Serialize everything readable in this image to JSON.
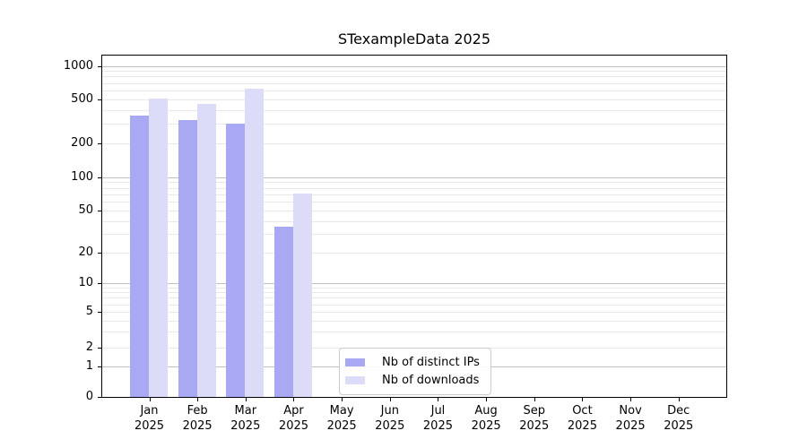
{
  "chart_data": {
    "type": "bar",
    "title": "STexampleData 2025",
    "categories": [
      "Jan 2025",
      "Feb 2025",
      "Mar 2025",
      "Apr 2025",
      "May 2025",
      "Jun 2025",
      "Jul 2025",
      "Aug 2025",
      "Sep 2025",
      "Oct 2025",
      "Nov 2025",
      "Dec 2025"
    ],
    "series": [
      {
        "name": "Nb of distinct IPs",
        "color": "#a9a9f3",
        "values": [
          355,
          325,
          300,
          35,
          0,
          0,
          0,
          0,
          0,
          0,
          0,
          0
        ]
      },
      {
        "name": "Nb of downloads",
        "color": "#dcdcf9",
        "values": [
          510,
          455,
          620,
          71,
          0,
          0,
          0,
          0,
          0,
          0,
          0,
          0
        ]
      }
    ],
    "yaxis": {
      "scale": "symlog",
      "ticks": [
        0,
        1,
        2,
        5,
        10,
        20,
        50,
        100,
        200,
        500,
        1000
      ],
      "range": [
        0,
        1260
      ]
    },
    "xlabel": "",
    "ylabel": "",
    "legend_position": "lower center",
    "grid": {
      "major": true,
      "minor": true
    }
  },
  "styles": {
    "bar_color_distinct_ips": "#a9a9f3",
    "bar_color_downloads": "#dcdcf9",
    "major_grid_color": "#c0c0c0",
    "minor_grid_color": "#e9e9e9",
    "axis_color": "#000000",
    "text_color": "#000000",
    "legend_border_color": "#cccccc",
    "background": "#ffffff"
  }
}
